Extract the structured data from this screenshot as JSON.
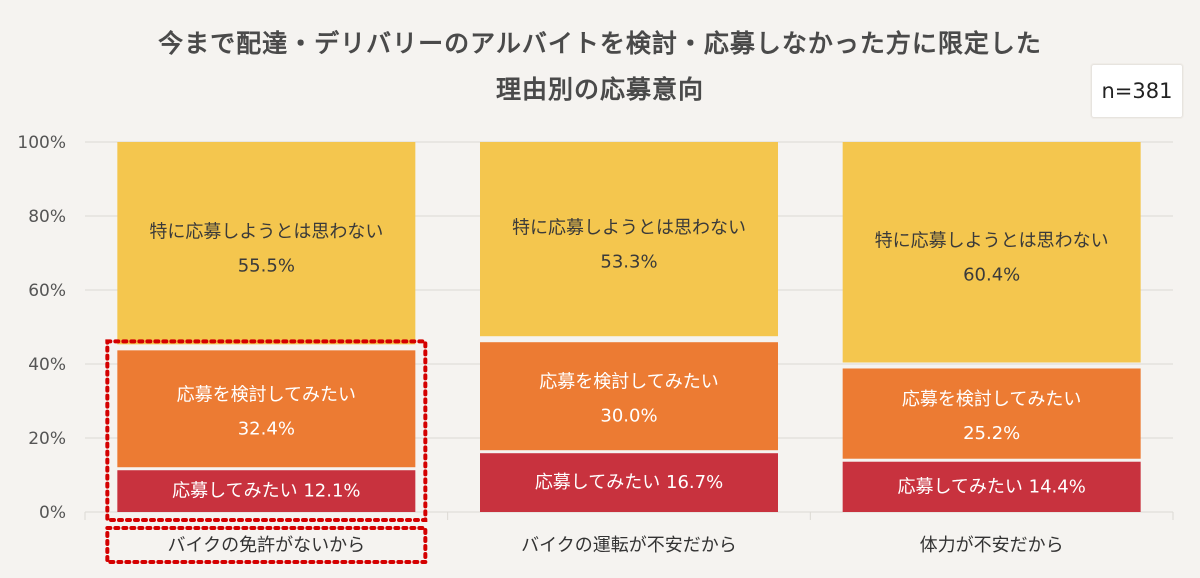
{
  "title_line1": "今まで配達・デリバリーのアルバイトを検討・応募しなかった方に限定した",
  "title_line2": "理由別の応募意向",
  "sample_size": "n=381",
  "colors": {
    "apply": "#c8323e",
    "consider": "#ec7b33",
    "no_intent": "#f4c64e",
    "highlight": "#d40000",
    "grid": "#dcd9d4"
  },
  "chart_data": {
    "type": "bar",
    "stacked": true,
    "ylim": [
      0,
      100
    ],
    "yticks": [
      "0%",
      "20%",
      "40%",
      "60%",
      "80%",
      "100%"
    ],
    "categories": [
      "バイクの免許がないから",
      "バイクの運転が不安だから",
      "体力が不安だから"
    ],
    "highlighted_category": "バイクの免許がないから",
    "series": [
      {
        "name": "応募してみたい",
        "values": [
          12.1,
          16.7,
          14.4
        ],
        "color": "#c8323e"
      },
      {
        "name": "応募を検討してみたい",
        "values": [
          32.4,
          30.0,
          25.2
        ],
        "color": "#ec7b33"
      },
      {
        "name": "特に応募しようとは思わない",
        "values": [
          55.5,
          53.3,
          60.4
        ],
        "color": "#f4c64e"
      }
    ],
    "segment_labels": [
      [
        "応募してみたい 12.1%",
        "応募を検討してみたい|32.4%",
        "特に応募しようとは思わない|55.5%"
      ],
      [
        "応募してみたい 16.7%",
        "応募を検討してみたい|30.0%",
        "特に応募しようとは思わない|53.3%"
      ],
      [
        "応募してみたい 14.4%",
        "応募を検討してみたい|25.2%",
        "特に応募しようとは思わない|60.4%"
      ]
    ]
  }
}
